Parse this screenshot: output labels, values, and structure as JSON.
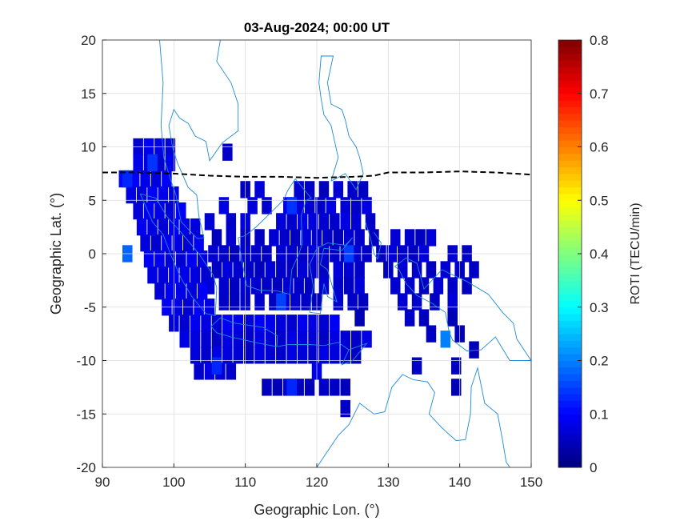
{
  "chart_data": {
    "type": "heatmap",
    "title": "03-Aug-2024; 00:00 UT",
    "xlabel": "Geographic Lon. (°)",
    "ylabel": "Geographic Lat. (°)",
    "xlim": [
      90,
      150
    ],
    "ylim": [
      -20,
      20
    ],
    "xticks": [
      "90",
      "100",
      "110",
      "120",
      "130",
      "140",
      "150"
    ],
    "yticks": [
      "20",
      "15",
      "10",
      "5",
      "0",
      "-5",
      "-10",
      "-15",
      "-20"
    ],
    "grid": true,
    "colorbar": {
      "label": "ROTI (TECU/min)",
      "range": [
        0,
        0.8
      ],
      "ticks": [
        "0",
        "0.1",
        "0.2",
        "0.3",
        "0.4",
        "0.5",
        "0.6",
        "0.7",
        "0.8"
      ],
      "colormap": "jet"
    },
    "magnetic_equator": {
      "style": "dashed",
      "color": "#000000",
      "lon": [
        90,
        95,
        100,
        105,
        110,
        115,
        120,
        125,
        128,
        130,
        135,
        140,
        145,
        150
      ],
      "lat": [
        7.6,
        7.6,
        7.5,
        7.3,
        7.2,
        7.2,
        7.1,
        7.2,
        7.3,
        7.6,
        7.6,
        7.7,
        7.6,
        7.4
      ]
    },
    "roti_rows": [
      {
        "lat": 10,
        "roti": 0.08,
        "lons": [
          95,
          96.5,
          98,
          99.5
        ]
      },
      {
        "lat": 9.5,
        "roti": 0.06,
        "lons": [
          107.5
        ]
      },
      {
        "lat": 8.5,
        "roti": 0.08,
        "lons": [
          95,
          96.5,
          98,
          99.5
        ]
      },
      {
        "lat": 7,
        "roti": 0.09,
        "lons": [
          93,
          94.5,
          96,
          97.5,
          99
        ]
      },
      {
        "lat": 6,
        "roti": 0.06,
        "lons": [
          110,
          112,
          117.5,
          119,
          121,
          123,
          125,
          126.5
        ]
      },
      {
        "lat": 5.5,
        "roti": 0.08,
        "lons": [
          94,
          95.5,
          97,
          98.5,
          100
        ]
      },
      {
        "lat": 4.5,
        "roti": 0.07,
        "lons": [
          107,
          111,
          113,
          116,
          117.5,
          119,
          120.5,
          122,
          124,
          125.5,
          127
        ]
      },
      {
        "lat": 4,
        "roti": 0.08,
        "lons": [
          95,
          96.5,
          98,
          99.5,
          101
        ]
      },
      {
        "lat": 3,
        "roti": 0.07,
        "lons": [
          105,
          108,
          110,
          115,
          116.5,
          118,
          119.5,
          121,
          122.5,
          124,
          125.5,
          127.5
        ]
      },
      {
        "lat": 2.5,
        "roti": 0.08,
        "lons": [
          95.5,
          97,
          98.5,
          100,
          101.5,
          103
        ]
      },
      {
        "lat": 1.5,
        "roti": 0.06,
        "lons": [
          106,
          108,
          110,
          112,
          114,
          115.5,
          117,
          118.5,
          120,
          121.5,
          123,
          124.5,
          126,
          128,
          131,
          133,
          134.5,
          136
        ]
      },
      {
        "lat": 1,
        "roti": 0.08,
        "lons": [
          96,
          97.5,
          99,
          100.5,
          102,
          103.5
        ]
      },
      {
        "lat": 0,
        "roti": 0.06,
        "lons": [
          105.5,
          107,
          108.5,
          110,
          111.5,
          113,
          115,
          116.5,
          118,
          119.5,
          121,
          122.5,
          124,
          125.5,
          127,
          129,
          130.5,
          132,
          133.5,
          135,
          139,
          141
        ]
      },
      {
        "lat": -0.5,
        "roti": 0.08,
        "lons": [
          96.5,
          98,
          99.5,
          101,
          102.5,
          104
        ]
      },
      {
        "lat": -1.5,
        "roti": 0.06,
        "lons": [
          106,
          107.5,
          109,
          110.5,
          112,
          113.5,
          115,
          116.5,
          118,
          119.5,
          121,
          123,
          124.5,
          126,
          130,
          132,
          134,
          136,
          138,
          140,
          142
        ]
      },
      {
        "lat": -2,
        "roti": 0.08,
        "lons": [
          97,
          98.5,
          100,
          101.5,
          103,
          104.5
        ]
      },
      {
        "lat": -3,
        "roti": 0.06,
        "lons": [
          105,
          107,
          108.5,
          110,
          111.5,
          113,
          114.5,
          116,
          117.5,
          119,
          121,
          123,
          124.5,
          126,
          131,
          133,
          135,
          137,
          139,
          141
        ]
      },
      {
        "lat": -3.5,
        "roti": 0.08,
        "lons": [
          98,
          99.5,
          101,
          102.5,
          104
        ]
      },
      {
        "lat": -4.5,
        "roti": 0.06,
        "lons": [
          107,
          108.5,
          110,
          112,
          114,
          115.5,
          117,
          118.5,
          120,
          123,
          125,
          126.5,
          132,
          134,
          136.5,
          139
        ]
      },
      {
        "lat": -5,
        "roti": 0.08,
        "lons": [
          99,
          100.5,
          102,
          103.5,
          105
        ]
      },
      {
        "lat": -6,
        "roti": 0.05,
        "lons": [
          126,
          133,
          135,
          139
        ]
      },
      {
        "lat": -6.5,
        "roti": 0.08,
        "lons": [
          100,
          101.5,
          103,
          104.5,
          106,
          107.5,
          109,
          110.5,
          112,
          113.5,
          115,
          116.5,
          118,
          119.5,
          121,
          122.5
        ]
      },
      {
        "lat": -7.5,
        "roti": 0.05,
        "lons": [
          136,
          140
        ]
      },
      {
        "lat": -8,
        "roti": 0.07,
        "lons": [
          101.5,
          103,
          104.5,
          106,
          107.5,
          109,
          110.5,
          112,
          113.5,
          115,
          116.5,
          118,
          119.5,
          121,
          122.5,
          124,
          125.5,
          127
        ]
      },
      {
        "lat": -9,
        "roti": 0.05,
        "lons": [
          142
        ]
      },
      {
        "lat": -9.5,
        "roti": 0.07,
        "lons": [
          103,
          104.5,
          106,
          107.5,
          109,
          110.5,
          112,
          113.5,
          115,
          116.5,
          118,
          119.5,
          121,
          122.5,
          124,
          125.5
        ]
      },
      {
        "lat": -10.5,
        "roti": 0.05,
        "lons": [
          134,
          139.5
        ]
      },
      {
        "lat": -11,
        "roti": 0.07,
        "lons": [
          103.5,
          105,
          106.5,
          108,
          120
        ]
      },
      {
        "lat": -12.5,
        "roti": 0.05,
        "lons": [
          113,
          114.5,
          116,
          117.5,
          119,
          121,
          122.5,
          124,
          139.5
        ]
      },
      {
        "lat": -14.5,
        "roti": 0.05,
        "lons": [
          124
        ]
      }
    ],
    "roti_highlights": [
      {
        "lon": 93.5,
        "lat": 0,
        "roti": 0.18
      },
      {
        "lon": 138,
        "lat": -8,
        "roti": 0.2
      },
      {
        "lon": 115,
        "lat": -4.5,
        "roti": 0.15
      },
      {
        "lon": 124.5,
        "lat": 0,
        "roti": 0.15
      },
      {
        "lon": 97,
        "lat": 8.5,
        "roti": 0.14
      },
      {
        "lon": 116.5,
        "lat": 4.5,
        "roti": 0.14
      },
      {
        "lon": 116.5,
        "lat": -12.5,
        "roti": 0.13
      },
      {
        "lon": 106,
        "lat": -10.5,
        "roti": 0.13
      },
      {
        "lon": 93.5,
        "lat": 7,
        "roti": 0.13
      }
    ]
  }
}
